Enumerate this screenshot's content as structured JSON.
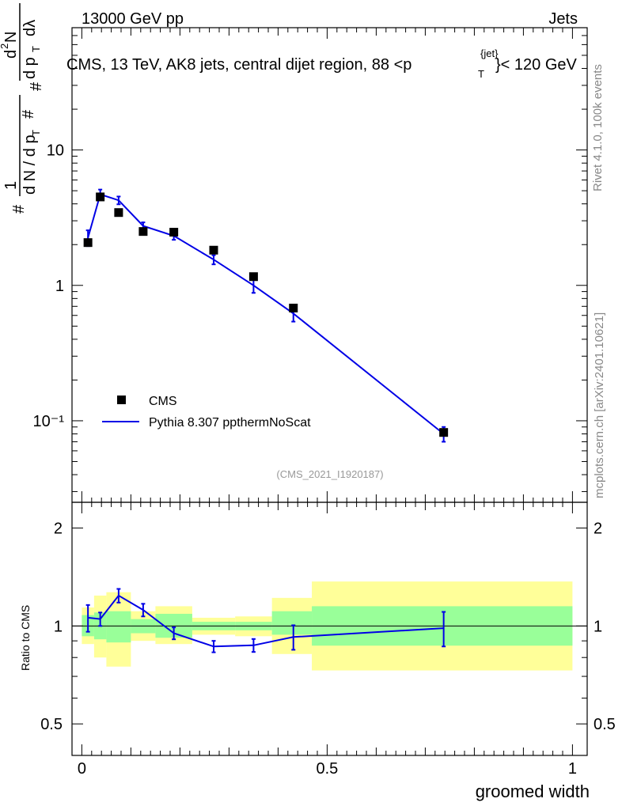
{
  "header": {
    "energy_label": "13000 GeV pp",
    "category_label": "Jets",
    "plot_title_main": "CMS, 13 TeV, AK8 jets, central dijet region, 88 <p",
    "plot_title_sup": "{jet}",
    "plot_title_sub": "T",
    "plot_title_end": "}< 120 GeV"
  },
  "side_labels": {
    "rivet": "Rivet 4.1.0,  100k events",
    "mcplots": "mcplots.cern.ch [arXiv:2401.10621]"
  },
  "analysis_id": "(CMS_2021_I1920187)",
  "y_axis_label": {
    "hash": "#",
    "one": "1",
    "dn": "d N / d p",
    "dn_sub": "T",
    "num": "d",
    "num_sup": "2",
    "num_n": "N",
    "den": "d p",
    "den_sub": "T",
    "den_lambda": "dλ"
  },
  "legend": {
    "data_label": "CMS",
    "mc_label": "Pythia 8.307 ppthermNoScat"
  },
  "colors": {
    "mc_line": "#0000e6",
    "band_inner": "#99ff99",
    "band_outer": "#ffff99",
    "data_marker": "#000000"
  },
  "chart_data": [
    {
      "type": "scatter",
      "title": "CMS, 13 TeV, AK8 jets, central dijet region, 88 <p_T^{jet}< 120 GeV",
      "xlabel": "groomed width",
      "ylabel": "1/dN/dp_T  d²N/dp_T dλ",
      "yscale": "log",
      "xlim": [
        -0.02,
        1.03
      ],
      "ylim": [
        0.025,
        80
      ],
      "y_ticks": [
        {
          "value": 10,
          "label": "10"
        },
        {
          "value": 1,
          "label": "1"
        },
        {
          "value": 0.1,
          "label": "10⁻¹"
        }
      ],
      "series": [
        {
          "name": "CMS",
          "style": "markers",
          "x": [
            0.0125,
            0.0375,
            0.075,
            0.125,
            0.1875,
            0.2687,
            0.35,
            0.4312,
            0.7375
          ],
          "y": [
            2.07,
            4.5,
            3.45,
            2.5,
            2.47,
            1.82,
            1.16,
            0.68,
            0.082
          ]
        },
        {
          "name": "Pythia 8.307 ppthermNoScat",
          "style": "line",
          "x": [
            0.0125,
            0.0375,
            0.075,
            0.125,
            0.1875,
            0.2687,
            0.35,
            0.4312,
            0.7375
          ],
          "y": [
            2.25,
            4.7,
            4.25,
            2.75,
            2.32,
            1.55,
            1.0,
            0.62,
            0.08
          ],
          "err": [
            0.3,
            0.4,
            0.28,
            0.17,
            0.15,
            0.12,
            0.12,
            0.08,
            0.01
          ]
        }
      ]
    },
    {
      "type": "line",
      "ylabel": "Ratio to CMS",
      "xlabel": "groomed width",
      "xlim": [
        -0.02,
        1.03
      ],
      "ylim": [
        0.4,
        2.4
      ],
      "yscale": "log",
      "x_ticks": [
        {
          "value": 0,
          "label": "0"
        },
        {
          "value": 0.5,
          "label": "0.5"
        },
        {
          "value": 1,
          "label": "1"
        }
      ],
      "y_ticks": [
        {
          "value": 2,
          "label": "2"
        },
        {
          "value": 1,
          "label": "1"
        },
        {
          "value": 0.5,
          "label": "0.5"
        }
      ],
      "bands": [
        {
          "x0": 0.0,
          "x1": 0.025,
          "inner": [
            0.93,
            1.08
          ],
          "outer": [
            0.88,
            1.14
          ]
        },
        {
          "x0": 0.025,
          "x1": 0.05,
          "inner": [
            0.91,
            1.1
          ],
          "outer": [
            0.8,
            1.24
          ]
        },
        {
          "x0": 0.05,
          "x1": 0.1,
          "inner": [
            0.89,
            1.11
          ],
          "outer": [
            0.75,
            1.27
          ]
        },
        {
          "x0": 0.1,
          "x1": 0.15,
          "inner": [
            0.95,
            1.05
          ],
          "outer": [
            0.9,
            1.11
          ]
        },
        {
          "x0": 0.15,
          "x1": 0.225,
          "inner": [
            0.92,
            1.09
          ],
          "outer": [
            0.88,
            1.15
          ]
        },
        {
          "x0": 0.225,
          "x1": 0.3125,
          "inner": [
            0.97,
            1.03
          ],
          "outer": [
            0.94,
            1.06
          ]
        },
        {
          "x0": 0.3125,
          "x1": 0.3875,
          "inner": [
            0.97,
            1.03
          ],
          "outer": [
            0.93,
            1.07
          ]
        },
        {
          "x0": 0.3875,
          "x1": 0.4688,
          "inner": [
            0.94,
            1.11
          ],
          "outer": [
            0.82,
            1.22
          ]
        },
        {
          "x0": 0.4688,
          "x1": 1.0,
          "inner": [
            0.87,
            1.15
          ],
          "outer": [
            0.73,
            1.37
          ]
        }
      ],
      "series": [
        {
          "name": "Pythia 8.307 ppthermNoScat / CMS",
          "x": [
            0.0125,
            0.0375,
            0.075,
            0.125,
            0.1875,
            0.2687,
            0.35,
            0.4312,
            0.7375
          ],
          "y": [
            1.06,
            1.05,
            1.24,
            1.12,
            0.95,
            0.865,
            0.872,
            0.925,
            0.985
          ],
          "err": [
            0.1,
            0.05,
            0.06,
            0.05,
            0.04,
            0.035,
            0.04,
            0.08,
            0.12
          ]
        }
      ]
    }
  ]
}
